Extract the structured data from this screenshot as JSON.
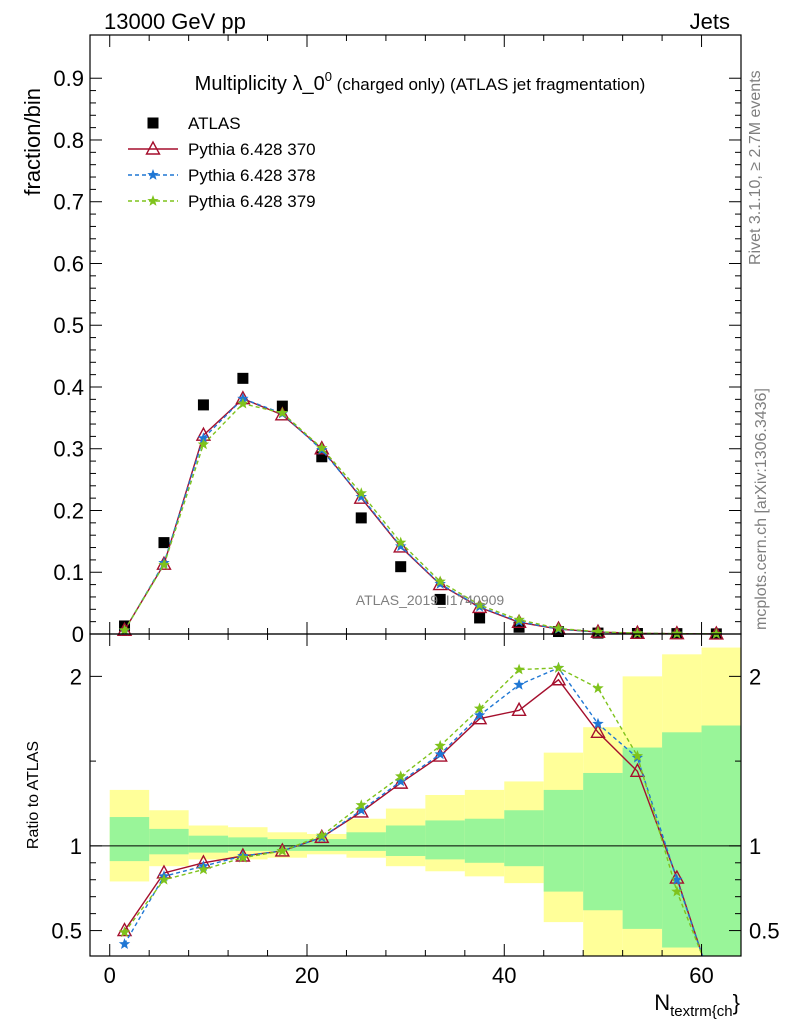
{
  "header": {
    "left": "13000 GeV pp",
    "right": "Jets"
  },
  "side_labels": {
    "rivet": "Rivet 3.1.10, ≥ 2.7M events",
    "mcplots": "mcplots.cern.ch [arXiv:1306.3436]"
  },
  "watermark": "ATLAS_2019_I1740909",
  "chart_data": [
    {
      "type": "scatter",
      "panel": "main",
      "title": "Multiplicity λ_0⁰ (charged only) (ATLAS jet fragmentation)",
      "title_main": "Multiplicity λ_0",
      "title_sup": "0",
      "title_tail": " (charged only) (ATLAS jet fragmentation)",
      "ylabel": "fraction/bin",
      "xlabel": "N",
      "xlabel_sub": "textrm{ch",
      "xlabel_close": "}",
      "xlim": [
        -2,
        64
      ],
      "ylim": [
        0,
        0.97
      ],
      "yticks": [
        0,
        0.1,
        0.2,
        0.3,
        0.4,
        0.5,
        0.6,
        0.7,
        0.8,
        0.9
      ],
      "ytick_labels": [
        "0",
        "0.1",
        "0.2",
        "0.3",
        "0.4",
        "0.5",
        "0.6",
        "0.7",
        "0.8",
        "0.9"
      ],
      "x": [
        1.5,
        5.5,
        9.5,
        13.5,
        17.5,
        21.5,
        25.5,
        29.5,
        33.5,
        37.5,
        41.5,
        45.5,
        49.5,
        53.5,
        57.5,
        61.5
      ],
      "legend_position": "top-left",
      "series": [
        {
          "name": "ATLAS",
          "color": "#000000",
          "marker": "square",
          "values": [
            0.013,
            0.148,
            0.371,
            0.414,
            0.369,
            0.287,
            0.188,
            0.109,
            0.056,
            0.026,
            0.011,
            0.004,
            0.0015,
            0.0008,
            0.0006,
            0.0002
          ]
        },
        {
          "name": "Pythia 6.428 370",
          "color": "#a50f2d",
          "marker": "triangle",
          "dash": "",
          "values": [
            0.006,
            0.113,
            0.322,
            0.381,
            0.355,
            0.3,
            0.22,
            0.141,
            0.08,
            0.043,
            0.019,
            0.008,
            0.003,
            0.0012,
            0.0005,
            0.0001
          ]
        },
        {
          "name": "Pythia 6.428 378",
          "color": "#1f77d4",
          "marker": "star",
          "dash": "4,3",
          "values": [
            0.0055,
            0.115,
            0.317,
            0.381,
            0.357,
            0.298,
            0.222,
            0.142,
            0.081,
            0.044,
            0.02,
            0.008,
            0.003,
            0.0012,
            0.0005,
            0.0001
          ]
        },
        {
          "name": "Pythia 6.428 379",
          "color": "#7fc31c",
          "marker": "star",
          "dash": "4,3",
          "values": [
            0.006,
            0.112,
            0.307,
            0.373,
            0.358,
            0.301,
            0.228,
            0.148,
            0.085,
            0.047,
            0.023,
            0.009,
            0.0035,
            0.0013,
            0.0005,
            0.0001
          ]
        }
      ]
    },
    {
      "type": "line",
      "panel": "ratio",
      "ylabel": "Ratio to ATLAS",
      "xlim": [
        -2,
        64
      ],
      "ylim": [
        0.35,
        2.25
      ],
      "yticks": [
        0.5,
        1,
        2
      ],
      "ytick_labels": [
        "0.5",
        "1",
        "2"
      ],
      "xticks": [
        0,
        20,
        40,
        60
      ],
      "xtick_labels": [
        "0",
        "20",
        "40",
        "60"
      ],
      "reference": 1,
      "band_x_edges": [
        0,
        4,
        8,
        12,
        16,
        20,
        24,
        28,
        32,
        36,
        40,
        44,
        48,
        52,
        56,
        60,
        64
      ],
      "band_yellow_low": [
        0.79,
        0.88,
        0.92,
        0.92,
        0.93,
        0.95,
        0.93,
        0.88,
        0.85,
        0.82,
        0.78,
        0.55,
        0.35,
        0.35,
        0.35,
        0.35
      ],
      "band_yellow_high": [
        1.33,
        1.21,
        1.12,
        1.11,
        1.08,
        1.07,
        1.16,
        1.22,
        1.3,
        1.33,
        1.38,
        1.55,
        1.7,
        2.0,
        2.13,
        2.17
      ],
      "band_green_low": [
        0.91,
        0.95,
        0.96,
        0.97,
        0.97,
        0.97,
        0.97,
        0.94,
        0.92,
        0.9,
        0.88,
        0.73,
        0.62,
        0.51,
        0.4,
        0.35
      ],
      "band_green_high": [
        1.17,
        1.1,
        1.06,
        1.05,
        1.04,
        1.04,
        1.08,
        1.12,
        1.15,
        1.16,
        1.21,
        1.33,
        1.43,
        1.58,
        1.67,
        1.71
      ],
      "x": [
        1.5,
        5.5,
        9.5,
        13.5,
        17.5,
        21.5,
        25.5,
        29.5,
        33.5,
        37.5,
        41.5,
        45.5,
        49.5,
        53.5,
        57.5
      ],
      "series": [
        {
          "name": "Pythia 6.428 370",
          "color": "#a50f2d",
          "marker": "triangle",
          "dash": "",
          "values": [
            0.5,
            0.84,
            0.9,
            0.94,
            0.97,
            1.05,
            1.2,
            1.37,
            1.53,
            1.75,
            1.8,
            1.98,
            1.67,
            1.44,
            0.81
          ]
        },
        {
          "name": "Pythia 6.428 378",
          "color": "#1f77d4",
          "marker": "star",
          "dash": "4,3",
          "values": [
            0.42,
            0.82,
            0.88,
            0.94,
            0.97,
            1.05,
            1.21,
            1.38,
            1.54,
            1.77,
            1.95,
            2.05,
            1.72,
            1.52,
            0.8
          ]
        },
        {
          "name": "Pythia 6.428 379",
          "color": "#7fc31c",
          "marker": "star",
          "dash": "4,3",
          "values": [
            0.49,
            0.8,
            0.86,
            0.93,
            0.97,
            1.06,
            1.24,
            1.41,
            1.59,
            1.81,
            2.04,
            2.05,
            1.93,
            1.53,
            0.73
          ]
        }
      ]
    }
  ]
}
